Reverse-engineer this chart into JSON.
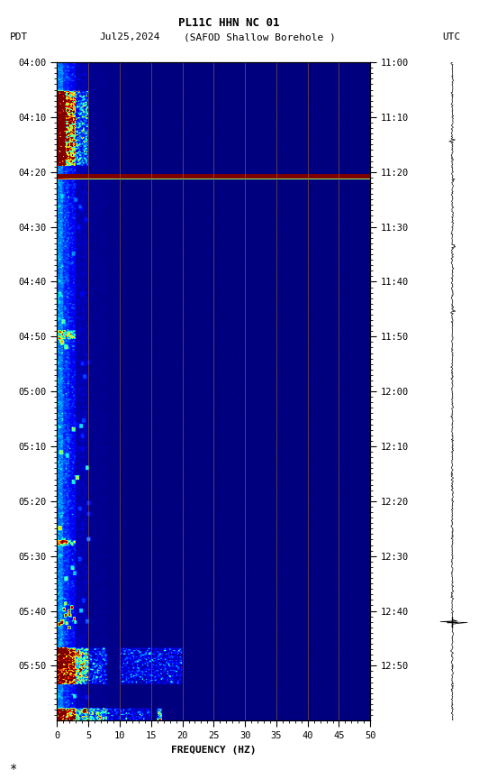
{
  "title_line1": "PL11C HHN NC 01",
  "title_line2_left": "PDT   Jul25,2024     (SAFOD Shallow Borehole )",
  "title_line2_right": "UTC",
  "xlabel": "FREQUENCY (HZ)",
  "freq_min": 0,
  "freq_max": 50,
  "yticks_pdt": [
    "04:00",
    "04:10",
    "04:20",
    "04:30",
    "04:40",
    "04:50",
    "05:00",
    "05:10",
    "05:20",
    "05:30",
    "05:40",
    "05:50"
  ],
  "yticks_utc": [
    "11:00",
    "11:10",
    "11:20",
    "11:30",
    "11:40",
    "11:50",
    "12:00",
    "12:10",
    "12:20",
    "12:30",
    "12:40",
    "12:50"
  ],
  "grid_freq_lines": [
    5,
    10,
    15,
    20,
    25,
    30,
    35,
    40,
    45
  ],
  "background_color": "#000066",
  "fig_bg_color": "#ffffff",
  "colormap": "jet",
  "noise_seed": 42
}
